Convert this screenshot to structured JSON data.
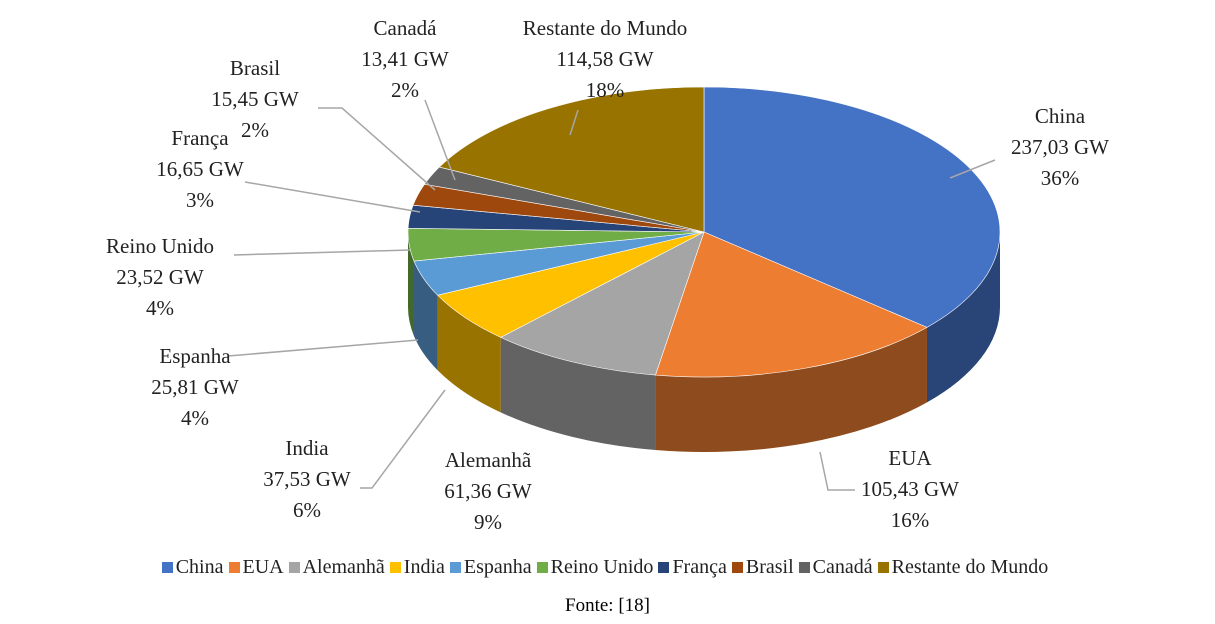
{
  "chart_data": {
    "type": "pie",
    "categories": [
      "China",
      "EUA",
      "Alemanhã",
      "India",
      "Espanha",
      "Reino Unido",
      "França",
      "Brasil",
      "Canadá",
      "Restante do Mundo"
    ],
    "values": [
      237.03,
      105.43,
      61.36,
      37.53,
      25.81,
      23.52,
      16.65,
      15.45,
      13.41,
      114.58
    ],
    "value_labels": [
      "237,03 GW",
      "105,43 GW",
      "61,36 GW",
      "37,53 GW",
      "25,81 GW",
      "23,52 GW",
      "16,65 GW",
      "15,45 GW",
      "13,41 GW",
      "114,58 GW"
    ],
    "percent_labels": [
      "36%",
      "16%",
      "9%",
      "6%",
      "4%",
      "4%",
      "3%",
      "2%",
      "2%",
      "18%"
    ],
    "colors": [
      "#4472c4",
      "#ed7d31",
      "#a5a5a5",
      "#ffc000",
      "#5b9bd5",
      "#70ad47",
      "#264478",
      "#9e480e",
      "#636363",
      "#997300"
    ],
    "legend": "bottom",
    "source": "Fonte: [18]"
  }
}
